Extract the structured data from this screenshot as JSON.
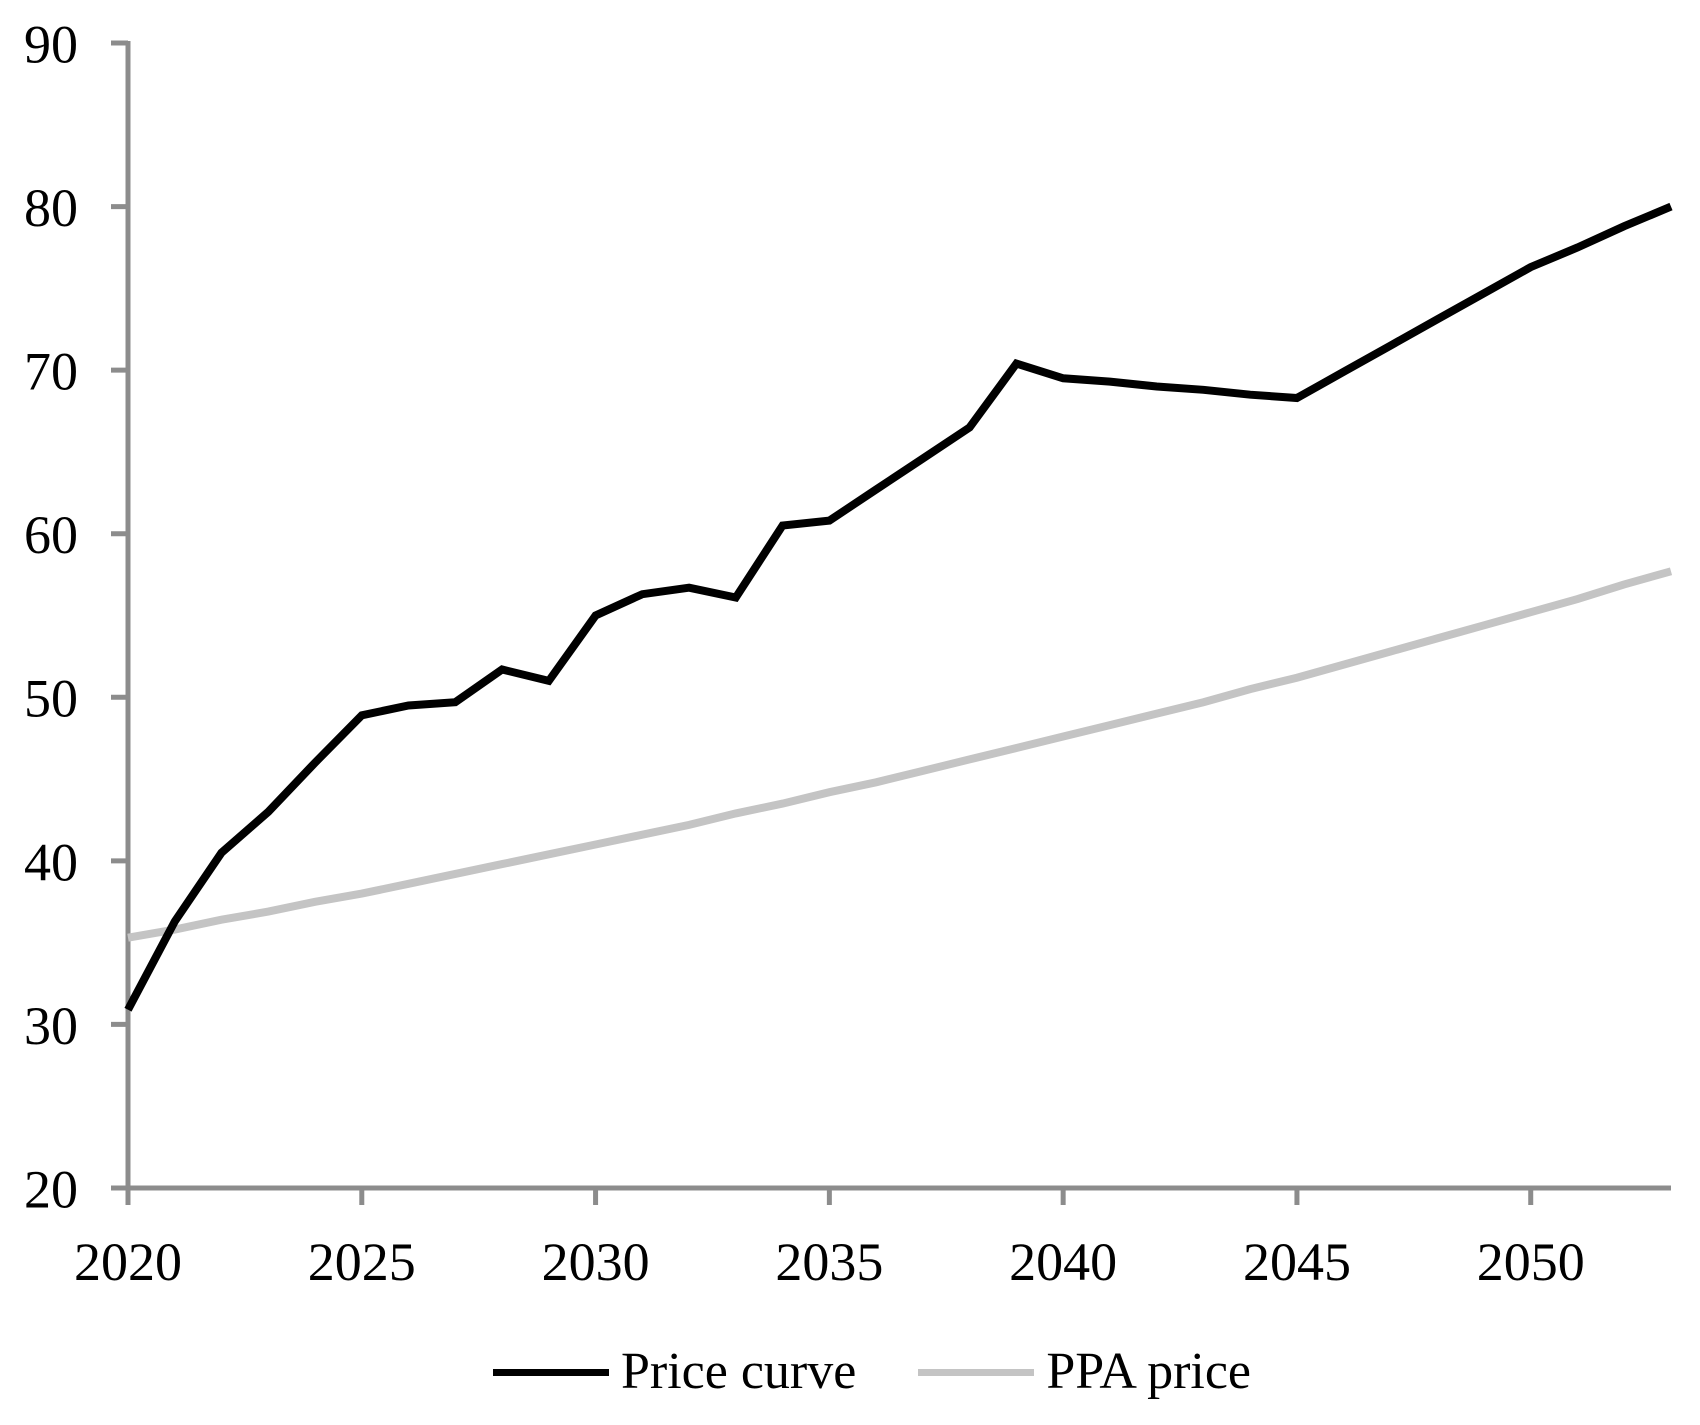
{
  "colors": {
    "background": "#ffffff",
    "axis": "#8c8c8c",
    "text": "#000000",
    "price_curve": "#000000",
    "ppa_price": "#c4c4c4"
  },
  "legend": {
    "items": [
      {
        "label": "Price curve",
        "color": "#000000"
      },
      {
        "label": "PPA price",
        "color": "#c4c4c4"
      }
    ]
  },
  "chart_data": {
    "type": "line",
    "title": "",
    "xlabel": "",
    "ylabel": "",
    "xlim": [
      2020,
      2053
    ],
    "ylim": [
      20,
      90
    ],
    "x_ticks": [
      2020,
      2025,
      2030,
      2035,
      2040,
      2045,
      2050
    ],
    "y_ticks": [
      20,
      30,
      40,
      50,
      60,
      70,
      80,
      90
    ],
    "grid": false,
    "legend_position": "bottom",
    "x": [
      2020,
      2021,
      2022,
      2023,
      2024,
      2025,
      2026,
      2027,
      2028,
      2029,
      2030,
      2031,
      2032,
      2033,
      2034,
      2035,
      2036,
      2037,
      2038,
      2039,
      2040,
      2041,
      2042,
      2043,
      2044,
      2045,
      2046,
      2047,
      2048,
      2049,
      2050,
      2051,
      2052,
      2053
    ],
    "series": [
      {
        "name": "Price curve",
        "color": "#000000",
        "values": [
          30.9,
          36.3,
          40.5,
          43.0,
          46.0,
          48.9,
          49.5,
          49.7,
          51.7,
          51.0,
          55.0,
          56.3,
          56.7,
          56.1,
          60.5,
          60.8,
          62.7,
          64.6,
          66.5,
          70.4,
          69.5,
          69.3,
          69.0,
          68.8,
          68.5,
          68.3,
          69.9,
          71.5,
          73.1,
          74.7,
          76.3,
          77.5,
          78.8,
          80.0
        ]
      },
      {
        "name": "PPA price",
        "color": "#c4c4c4",
        "values": [
          35.3,
          35.8,
          36.4,
          36.9,
          37.5,
          38.0,
          38.6,
          39.2,
          39.8,
          40.4,
          41.0,
          41.6,
          42.2,
          42.9,
          43.5,
          44.2,
          44.8,
          45.5,
          46.2,
          46.9,
          47.6,
          48.3,
          49.0,
          49.7,
          50.5,
          51.2,
          52.0,
          52.8,
          53.6,
          54.4,
          55.2,
          56.0,
          56.9,
          57.7
        ]
      }
    ]
  }
}
